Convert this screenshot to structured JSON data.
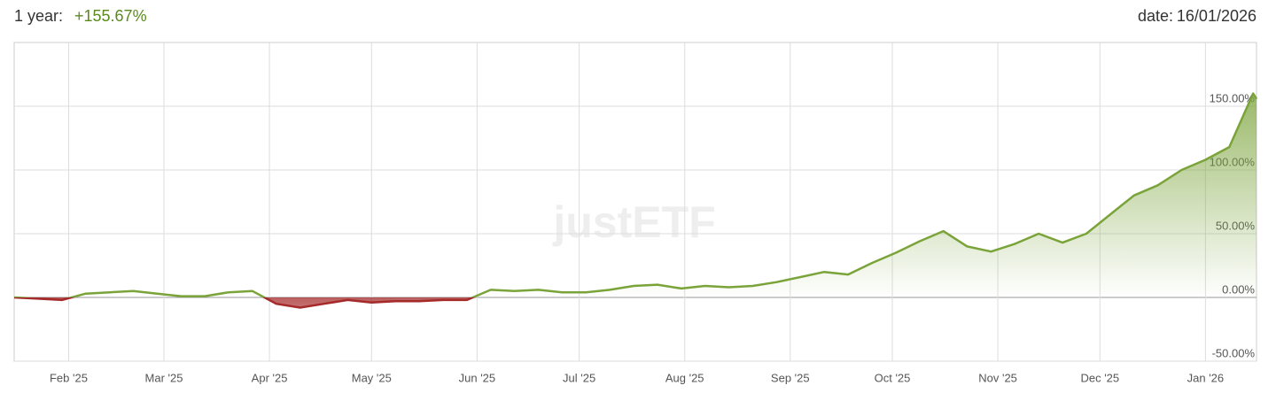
{
  "header": {
    "period": "1 year:",
    "performance": "+155.67%",
    "date_label": "date:",
    "date": "16/01/2026"
  },
  "chart_data": {
    "type": "area",
    "watermark": "justETF",
    "x": [
      "2025-01-16",
      "2025-01-23",
      "2025-01-30",
      "2025-02-06",
      "2025-02-13",
      "2025-02-20",
      "2025-02-27",
      "2025-03-06",
      "2025-03-13",
      "2025-03-20",
      "2025-03-27",
      "2025-04-03",
      "2025-04-10",
      "2025-04-17",
      "2025-04-24",
      "2025-05-01",
      "2025-05-08",
      "2025-05-15",
      "2025-05-22",
      "2025-05-29",
      "2025-06-05",
      "2025-06-12",
      "2025-06-19",
      "2025-06-26",
      "2025-07-03",
      "2025-07-10",
      "2025-07-17",
      "2025-07-24",
      "2025-07-31",
      "2025-08-07",
      "2025-08-14",
      "2025-08-21",
      "2025-08-28",
      "2025-09-04",
      "2025-09-11",
      "2025-09-18",
      "2025-09-25",
      "2025-10-02",
      "2025-10-09",
      "2025-10-16",
      "2025-10-23",
      "2025-10-30",
      "2025-11-06",
      "2025-11-13",
      "2025-11-20",
      "2025-11-27",
      "2025-12-04",
      "2025-12-11",
      "2025-12-18",
      "2025-12-25",
      "2026-01-01",
      "2026-01-08",
      "2026-01-15",
      "2026-01-16"
    ],
    "series": [
      {
        "name": "1 year",
        "color": "#7aa33a",
        "negative_color": "#a52a2a",
        "values": [
          0,
          -1,
          -2,
          3,
          4,
          5,
          3,
          1,
          1,
          4,
          5,
          -5,
          -8,
          -5,
          -2,
          -4,
          -3,
          -3,
          -2,
          -2,
          6,
          5,
          6,
          4,
          4,
          6,
          9,
          10,
          7,
          9,
          8,
          9,
          12,
          16,
          20,
          18,
          27,
          35,
          44,
          52,
          40,
          36,
          42,
          50,
          43,
          50,
          65,
          80,
          88,
          100,
          108,
          118,
          160,
          155.67
        ]
      }
    ],
    "xlim": [
      "2025-01-16",
      "2026-01-16"
    ],
    "xticks": [
      {
        "value": "2025-02-01",
        "label": "Feb '25"
      },
      {
        "value": "2025-03-01",
        "label": "Mar '25"
      },
      {
        "value": "2025-04-01",
        "label": "Apr '25"
      },
      {
        "value": "2025-05-01",
        "label": "May '25"
      },
      {
        "value": "2025-06-01",
        "label": "Jun '25"
      },
      {
        "value": "2025-07-01",
        "label": "Jul '25"
      },
      {
        "value": "2025-08-01",
        "label": "Aug '25"
      },
      {
        "value": "2025-09-01",
        "label": "Sep '25"
      },
      {
        "value": "2025-10-01",
        "label": "Oct '25"
      },
      {
        "value": "2025-11-01",
        "label": "Nov '25"
      },
      {
        "value": "2025-12-01",
        "label": "Dec '25"
      },
      {
        "value": "2026-01-01",
        "label": "Jan '26"
      }
    ],
    "ylim": [
      -50,
      200
    ],
    "yticks": [
      {
        "value": -50,
        "label": "-50.00%"
      },
      {
        "value": 0,
        "label": "0.00%"
      },
      {
        "value": 50,
        "label": "50.00%"
      },
      {
        "value": 100,
        "label": "100.00%"
      },
      {
        "value": 150,
        "label": "150.00%"
      }
    ],
    "grid": true
  }
}
